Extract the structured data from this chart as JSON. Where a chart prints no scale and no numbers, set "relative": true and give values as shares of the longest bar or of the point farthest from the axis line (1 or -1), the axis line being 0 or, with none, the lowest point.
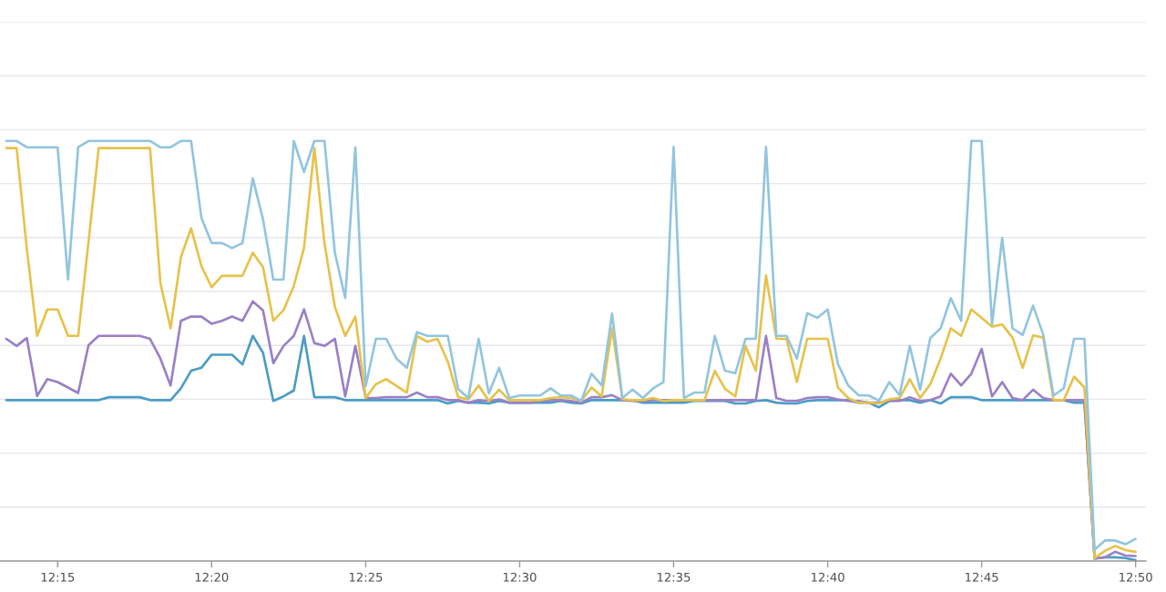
{
  "chart_data": {
    "type": "line",
    "relative": true,
    "grid": "y",
    "marker": "none",
    "line_style": "solid",
    "xlim": [
      12.2188,
      12.8389
    ],
    "xticks": [
      {
        "value": 12.25,
        "label": "12:15"
      },
      {
        "value": 12.3333,
        "label": "12:20"
      },
      {
        "value": 12.4167,
        "label": "12:25"
      },
      {
        "value": 12.5,
        "label": "12:30"
      },
      {
        "value": 12.5833,
        "label": "12:35"
      },
      {
        "value": 12.6667,
        "label": "12:40"
      },
      {
        "value": 12.75,
        "label": "12:45"
      },
      {
        "value": 12.8333,
        "label": "12:50"
      }
    ],
    "x": [
      12.2222,
      12.2278,
      12.2333,
      12.2389,
      12.2444,
      12.25,
      12.2556,
      12.2611,
      12.2667,
      12.2722,
      12.2778,
      12.2833,
      12.2889,
      12.2944,
      12.3,
      12.3056,
      12.3111,
      12.3167,
      12.3222,
      12.3278,
      12.3333,
      12.3389,
      12.3444,
      12.35,
      12.3556,
      12.3611,
      12.3667,
      12.3722,
      12.3778,
      12.3833,
      12.3889,
      12.3944,
      12.4,
      12.4056,
      12.4111,
      12.4167,
      12.4222,
      12.4278,
      12.4333,
      12.4389,
      12.4444,
      12.45,
      12.4556,
      12.4611,
      12.4667,
      12.4722,
      12.4778,
      12.4833,
      12.4889,
      12.4944,
      12.5,
      12.5056,
      12.5111,
      12.5167,
      12.5222,
      12.5278,
      12.5333,
      12.5389,
      12.5444,
      12.55,
      12.5556,
      12.5611,
      12.5667,
      12.5722,
      12.5778,
      12.5833,
      12.5889,
      12.5944,
      12.6,
      12.6056,
      12.6111,
      12.6167,
      12.6222,
      12.6278,
      12.6333,
      12.6389,
      12.6444,
      12.65,
      12.6556,
      12.6611,
      12.6667,
      12.6722,
      12.6778,
      12.6833,
      12.6889,
      12.6944,
      12.7,
      12.7056,
      12.7111,
      12.7167,
      12.7222,
      12.7278,
      12.7333,
      12.7389,
      12.7444,
      12.75,
      12.7556,
      12.7611,
      12.7667,
      12.7722,
      12.7778,
      12.7833,
      12.7889,
      12.7944,
      12.8,
      12.8056,
      12.8111,
      12.8167,
      12.8222,
      12.8278,
      12.8333
    ],
    "series": [
      {
        "color": "#4a9cc5",
        "values": [
          0.383,
          0.383,
          0.383,
          0.383,
          0.383,
          0.383,
          0.383,
          0.383,
          0.383,
          0.383,
          0.39,
          0.39,
          0.39,
          0.39,
          0.383,
          0.383,
          0.383,
          0.411,
          0.453,
          0.46,
          0.491,
          0.491,
          0.491,
          0.468,
          0.536,
          0.496,
          0.381,
          0.392,
          0.406,
          0.536,
          0.39,
          0.39,
          0.39,
          0.383,
          0.383,
          0.383,
          0.383,
          0.383,
          0.383,
          0.383,
          0.383,
          0.383,
          0.383,
          0.375,
          0.381,
          0.377,
          0.377,
          0.375,
          0.381,
          0.377,
          0.377,
          0.377,
          0.377,
          0.377,
          0.381,
          0.377,
          0.375,
          0.383,
          0.383,
          0.383,
          0.383,
          0.383,
          0.377,
          0.377,
          0.377,
          0.377,
          0.377,
          0.381,
          0.381,
          0.381,
          0.381,
          0.375,
          0.375,
          0.381,
          0.383,
          0.377,
          0.375,
          0.375,
          0.381,
          0.383,
          0.383,
          0.383,
          0.383,
          0.377,
          0.377,
          0.366,
          0.381,
          0.383,
          0.383,
          0.377,
          0.383,
          0.375,
          0.39,
          0.39,
          0.39,
          0.383,
          0.383,
          0.383,
          0.383,
          0.383,
          0.383,
          0.383,
          0.383,
          0.383,
          0.377,
          0.377,
          0.006,
          0.009,
          0.009,
          0.007,
          0.002
        ]
      },
      {
        "color": "#9a80c6",
        "values": [
          0.529,
          0.512,
          0.531,
          0.393,
          0.433,
          0.426,
          0.413,
          0.4,
          0.514,
          0.536,
          0.536,
          0.536,
          0.536,
          0.536,
          0.529,
          0.482,
          0.418,
          0.572,
          0.582,
          0.582,
          0.565,
          0.572,
          0.582,
          0.572,
          0.618,
          0.597,
          0.471,
          0.512,
          0.536,
          0.599,
          0.519,
          0.512,
          0.529,
          0.392,
          0.512,
          0.388,
          0.388,
          0.39,
          0.39,
          0.39,
          0.401,
          0.39,
          0.39,
          0.383,
          0.383,
          0.377,
          0.383,
          0.381,
          0.385,
          0.377,
          0.377,
          0.377,
          0.381,
          0.383,
          0.383,
          0.381,
          0.377,
          0.39,
          0.39,
          0.395,
          0.383,
          0.381,
          0.381,
          0.383,
          0.383,
          0.383,
          0.383,
          0.383,
          0.383,
          0.383,
          0.383,
          0.383,
          0.383,
          0.383,
          0.536,
          0.388,
          0.381,
          0.381,
          0.388,
          0.39,
          0.39,
          0.385,
          0.381,
          0.381,
          0.377,
          0.377,
          0.381,
          0.381,
          0.39,
          0.381,
          0.383,
          0.392,
          0.446,
          0.418,
          0.446,
          0.505,
          0.392,
          0.426,
          0.388,
          0.383,
          0.408,
          0.388,
          0.383,
          0.383,
          0.383,
          0.383,
          0.006,
          0.009,
          0.022,
          0.013,
          0.012
        ]
      },
      {
        "color": "#e6c24a",
        "values": [
          0.983,
          0.983,
          0.744,
          0.536,
          0.599,
          0.599,
          0.536,
          0.536,
          0.76,
          0.983,
          0.983,
          0.983,
          0.983,
          0.983,
          0.983,
          0.662,
          0.554,
          0.724,
          0.792,
          0.702,
          0.652,
          0.679,
          0.679,
          0.679,
          0.734,
          0.7,
          0.572,
          0.597,
          0.655,
          0.745,
          0.983,
          0.756,
          0.605,
          0.536,
          0.582,
          0.388,
          0.421,
          0.433,
          0.417,
          0.401,
          0.536,
          0.522,
          0.529,
          0.475,
          0.39,
          0.385,
          0.418,
          0.381,
          0.408,
          0.383,
          0.383,
          0.383,
          0.383,
          0.388,
          0.39,
          0.388,
          0.381,
          0.413,
          0.392,
          0.554,
          0.385,
          0.383,
          0.383,
          0.388,
          0.381,
          0.383,
          0.383,
          0.383,
          0.383,
          0.453,
          0.41,
          0.392,
          0.512,
          0.453,
          0.68,
          0.529,
          0.529,
          0.426,
          0.529,
          0.529,
          0.529,
          0.413,
          0.388,
          0.377,
          0.377,
          0.375,
          0.385,
          0.388,
          0.433,
          0.388,
          0.421,
          0.482,
          0.554,
          0.536,
          0.599,
          0.579,
          0.558,
          0.563,
          0.532,
          0.46,
          0.537,
          0.532,
          0.383,
          0.383,
          0.439,
          0.413,
          0.007,
          0.024,
          0.036,
          0.026,
          0.022
        ]
      },
      {
        "color": "#92c5de",
        "values": [
          1.0,
          1.0,
          0.985,
          0.985,
          0.985,
          0.985,
          0.67,
          0.985,
          1.0,
          1.0,
          1.0,
          1.0,
          1.0,
          1.0,
          1.0,
          0.985,
          0.985,
          1.0,
          1.0,
          0.817,
          0.757,
          0.757,
          0.745,
          0.757,
          0.911,
          0.814,
          0.67,
          0.67,
          1.0,
          0.926,
          1.0,
          1.0,
          0.734,
          0.626,
          0.985,
          0.417,
          0.529,
          0.529,
          0.482,
          0.46,
          0.545,
          0.536,
          0.536,
          0.536,
          0.41,
          0.388,
          0.529,
          0.399,
          0.46,
          0.388,
          0.394,
          0.394,
          0.394,
          0.411,
          0.394,
          0.394,
          0.381,
          0.446,
          0.418,
          0.589,
          0.388,
          0.408,
          0.388,
          0.411,
          0.426,
          0.986,
          0.388,
          0.401,
          0.401,
          0.536,
          0.453,
          0.447,
          0.529,
          0.529,
          0.986,
          0.536,
          0.536,
          0.482,
          0.59,
          0.579,
          0.599,
          0.469,
          0.418,
          0.395,
          0.394,
          0.382,
          0.426,
          0.395,
          0.512,
          0.408,
          0.531,
          0.554,
          0.626,
          0.572,
          1.0,
          1.0,
          0.563,
          0.769,
          0.554,
          0.538,
          0.608,
          0.539,
          0.394,
          0.411,
          0.529,
          0.529,
          0.027,
          0.049,
          0.049,
          0.04,
          0.053
        ]
      }
    ]
  }
}
